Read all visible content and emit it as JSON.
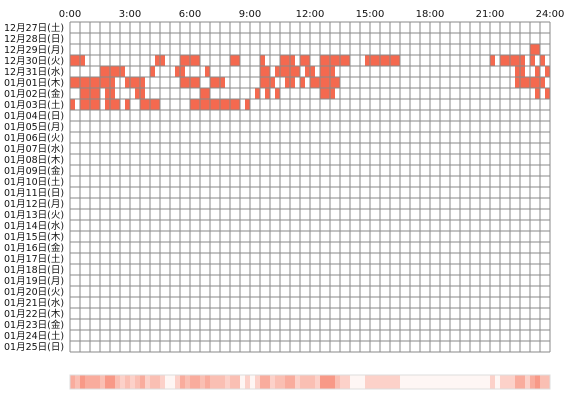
{
  "chart_data": {
    "type": "heatmap",
    "title": "",
    "xlabel": "",
    "ylabel": "",
    "x_ticks": [
      "0:00",
      "3:00",
      "6:00",
      "9:00",
      "12:00",
      "15:00",
      "18:00",
      "21:00",
      "24:00"
    ],
    "x_range_hours": [
      0,
      24
    ],
    "grid": true,
    "days": [
      "12月27日(土)",
      "12月28日(日)",
      "12月29日(月)",
      "12月30日(火)",
      "12月31日(水)",
      "01月01日(木)",
      "01月02日(金)",
      "01月03日(土)",
      "01月04日(日)",
      "01月05日(月)",
      "01月06日(火)",
      "01月07日(水)",
      "01月08日(木)",
      "01月09日(金)",
      "01月10日(土)",
      "01月11日(日)",
      "01月12日(月)",
      "01月13日(火)",
      "01月14日(水)",
      "01月15日(木)",
      "01月16日(金)",
      "01月17日(土)",
      "01月18日(日)",
      "01月19日(月)",
      "01月20日(火)",
      "01月21日(水)",
      "01月22日(木)",
      "01月23日(金)",
      "01月24日(土)",
      "01月25日(日)"
    ],
    "activity": [
      {
        "day": "12月29日(月)",
        "hours": [
          [
            23.0,
            23.5
          ]
        ]
      },
      {
        "day": "12月30日(火)",
        "hours": [
          [
            0.0,
            0.75
          ],
          [
            4.25,
            4.75
          ],
          [
            5.5,
            6.5
          ],
          [
            8.0,
            8.5
          ],
          [
            9.5,
            9.75
          ],
          [
            10.5,
            11.25
          ],
          [
            11.5,
            12.0
          ],
          [
            12.5,
            14.0
          ],
          [
            14.75,
            15.0
          ],
          [
            15.0,
            16.5
          ],
          [
            21.0,
            21.25
          ],
          [
            21.5,
            22.75
          ],
          [
            23.0,
            23.25
          ],
          [
            23.5,
            23.75
          ]
        ]
      },
      {
        "day": "12月31日(水)",
        "hours": [
          [
            1.5,
            2.75
          ],
          [
            4.0,
            4.25
          ],
          [
            5.25,
            5.75
          ],
          [
            6.75,
            7.0
          ],
          [
            9.5,
            10.0
          ],
          [
            10.25,
            11.5
          ],
          [
            11.75,
            12.25
          ],
          [
            12.5,
            13.25
          ],
          [
            22.25,
            22.75
          ],
          [
            23.25,
            23.5
          ],
          [
            23.75,
            24.0
          ]
        ]
      },
      {
        "day": "01月01日(木)",
        "hours": [
          [
            0.0,
            2.25
          ],
          [
            2.75,
            3.75
          ],
          [
            5.5,
            6.5
          ],
          [
            7.0,
            7.75
          ],
          [
            9.5,
            10.25
          ],
          [
            10.75,
            11.25
          ],
          [
            11.5,
            11.75
          ],
          [
            12.0,
            13.5
          ],
          [
            22.25,
            23.75
          ]
        ]
      },
      {
        "day": "01月02日(金)",
        "hours": [
          [
            0.5,
            1.5
          ],
          [
            1.75,
            2.25
          ],
          [
            3.25,
            3.75
          ],
          [
            6.5,
            7.0
          ],
          [
            9.25,
            9.5
          ],
          [
            9.75,
            10.0
          ],
          [
            10.25,
            10.5
          ],
          [
            12.5,
            13.25
          ],
          [
            23.25,
            23.5
          ],
          [
            23.75,
            24.0
          ]
        ]
      },
      {
        "day": "01月03日(土)",
        "hours": [
          [
            0.0,
            0.25
          ],
          [
            0.5,
            0.75
          ],
          [
            0.75,
            1.5
          ],
          [
            1.75,
            2.0
          ],
          [
            2.0,
            2.5
          ],
          [
            2.75,
            3.0
          ],
          [
            3.5,
            4.5
          ],
          [
            6.0,
            8.5
          ],
          [
            8.75,
            9.0
          ]
        ]
      }
    ]
  }
}
